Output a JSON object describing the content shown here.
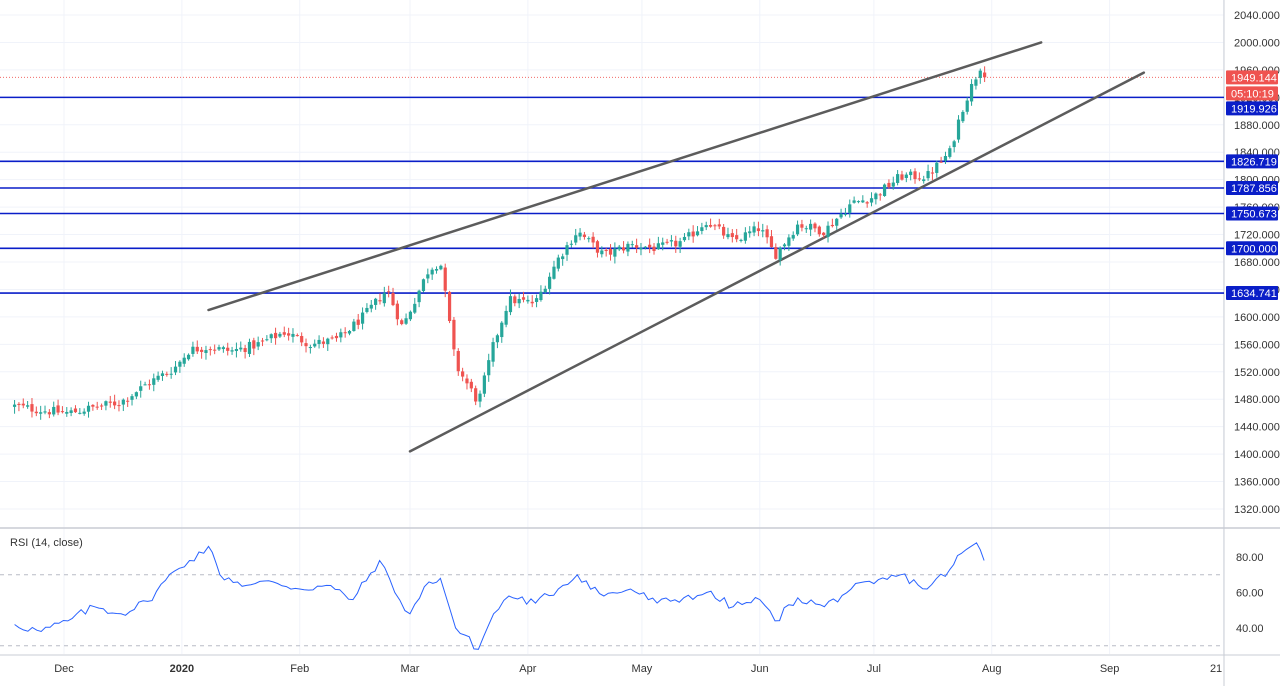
{
  "chart_data": [
    {
      "type": "candlestick",
      "title": "",
      "x_ticks": [
        "Dec",
        "2020",
        "Feb",
        "Mar",
        "Apr",
        "May",
        "Jun",
        "Jul",
        "Aug",
        "Sep",
        "21"
      ],
      "y_ticks": [
        "1320.000",
        "1360.000",
        "1400.000",
        "1440.000",
        "1480.000",
        "1520.000",
        "1560.000",
        "1600.000",
        "1640.000",
        "1680.000",
        "1720.000",
        "1760.000",
        "1800.000",
        "1840.000",
        "1880.000",
        "1920.000",
        "1960.000",
        "2000.000",
        "2040.000"
      ],
      "ylim": [
        1300,
        2055
      ],
      "last_price": {
        "value": 1949.144,
        "label": "1949.144",
        "color": "#ef5350"
      },
      "countdown": {
        "label": "05:10:19",
        "color": "#ef5350"
      },
      "horizontal_levels": [
        {
          "value": 1919.926,
          "label": "1919.926",
          "color": "#0a1ec8"
        },
        {
          "value": 1826.719,
          "label": "1826.719",
          "color": "#0a1ec8"
        },
        {
          "value": 1787.856,
          "label": "1787.856",
          "color": "#0a1ec8"
        },
        {
          "value": 1750.673,
          "label": "1750.673",
          "color": "#0a1ec8"
        },
        {
          "value": 1700.0,
          "label": "1700.000",
          "color": "#0a1ec8"
        },
        {
          "value": 1634.741,
          "label": "1634.741",
          "color": "#0a1ec8"
        }
      ],
      "trendlines": [
        {
          "from": {
            "date": "2020-01-08",
            "value": 1610
          },
          "to": {
            "date": "2020-08-14",
            "value": 2000
          },
          "color": "#5c5c5c"
        },
        {
          "from": {
            "date": "2020-03-01",
            "value": 1404
          },
          "to": {
            "date": "2020-09-10",
            "value": 1956
          },
          "color": "#5c5c5c"
        }
      ],
      "colors": {
        "up": "#26a69a",
        "down": "#ef5350"
      },
      "close_path": [
        [
          "2019-11-18",
          1470
        ],
        [
          "2019-11-25",
          1464
        ],
        [
          "2019-12-02",
          1460
        ],
        [
          "2019-12-09",
          1468
        ],
        [
          "2019-12-16",
          1476
        ],
        [
          "2019-12-23",
          1503
        ],
        [
          "2019-12-30",
          1525
        ],
        [
          "2020-01-03",
          1552
        ],
        [
          "2020-01-08",
          1556
        ],
        [
          "2020-01-14",
          1550
        ],
        [
          "2020-01-21",
          1560
        ],
        [
          "2020-01-28",
          1578
        ],
        [
          "2020-02-04",
          1560
        ],
        [
          "2020-02-11",
          1567
        ],
        [
          "2020-02-18",
          1602
        ],
        [
          "2020-02-24",
          1640
        ],
        [
          "2020-02-28",
          1585
        ],
        [
          "2020-03-06",
          1670
        ],
        [
          "2020-03-09",
          1680
        ],
        [
          "2020-03-13",
          1530
        ],
        [
          "2020-03-19",
          1475
        ],
        [
          "2020-03-23",
          1560
        ],
        [
          "2020-03-27",
          1625
        ],
        [
          "2020-04-03",
          1620
        ],
        [
          "2020-04-09",
          1685
        ],
        [
          "2020-04-14",
          1725
        ],
        [
          "2020-04-21",
          1690
        ],
        [
          "2020-04-28",
          1705
        ],
        [
          "2020-05-05",
          1700
        ],
        [
          "2020-05-12",
          1710
        ],
        [
          "2020-05-18",
          1740
        ],
        [
          "2020-05-25",
          1710
        ],
        [
          "2020-06-01",
          1730
        ],
        [
          "2020-06-05",
          1690
        ],
        [
          "2020-06-11",
          1735
        ],
        [
          "2020-06-18",
          1725
        ],
        [
          "2020-06-25",
          1765
        ],
        [
          "2020-07-01",
          1775
        ],
        [
          "2020-07-08",
          1805
        ],
        [
          "2020-07-15",
          1805
        ],
        [
          "2020-07-21",
          1840
        ],
        [
          "2020-07-24",
          1900
        ],
        [
          "2020-07-27",
          1940
        ],
        [
          "2020-07-29",
          1965
        ],
        [
          "2020-07-30",
          1949
        ]
      ]
    },
    {
      "type": "line",
      "title": "RSI (14, close)",
      "y_ticks": [
        "40.00",
        "60.00",
        "80.00"
      ],
      "ylim": [
        15,
        100
      ],
      "reference_lines": [
        30,
        70
      ],
      "series": [
        {
          "values": [
            [
              "2019-11-18",
              42
            ],
            [
              "2019-11-25",
              38
            ],
            [
              "2019-12-02",
              44
            ],
            [
              "2019-12-09",
              52
            ],
            [
              "2019-12-16",
              48
            ],
            [
              "2019-12-23",
              55
            ],
            [
              "2019-12-30",
              72
            ],
            [
              "2020-01-03",
              78
            ],
            [
              "2020-01-08",
              86
            ],
            [
              "2020-01-11",
              70
            ],
            [
              "2020-01-18",
              64
            ],
            [
              "2020-01-25",
              66
            ],
            [
              "2020-02-01",
              62
            ],
            [
              "2020-02-08",
              64
            ],
            [
              "2020-02-15",
              56
            ],
            [
              "2020-02-22",
              78
            ],
            [
              "2020-02-26",
              60
            ],
            [
              "2020-03-01",
              48
            ],
            [
              "2020-03-06",
              66
            ],
            [
              "2020-03-09",
              68
            ],
            [
              "2020-03-13",
              40
            ],
            [
              "2020-03-19",
              28
            ],
            [
              "2020-03-23",
              48
            ],
            [
              "2020-03-27",
              58
            ],
            [
              "2020-04-03",
              54
            ],
            [
              "2020-04-09",
              62
            ],
            [
              "2020-04-14",
              70
            ],
            [
              "2020-04-21",
              58
            ],
            [
              "2020-04-28",
              62
            ],
            [
              "2020-05-05",
              54
            ],
            [
              "2020-05-12",
              57
            ],
            [
              "2020-05-18",
              60
            ],
            [
              "2020-05-25",
              52
            ],
            [
              "2020-06-01",
              56
            ],
            [
              "2020-06-05",
              44
            ],
            [
              "2020-06-11",
              57
            ],
            [
              "2020-06-18",
              52
            ],
            [
              "2020-06-25",
              62
            ],
            [
              "2020-07-01",
              65
            ],
            [
              "2020-07-08",
              70
            ],
            [
              "2020-07-15",
              62
            ],
            [
              "2020-07-21",
              73
            ],
            [
              "2020-07-24",
              82
            ],
            [
              "2020-07-28",
              88
            ],
            [
              "2020-07-30",
              78
            ]
          ],
          "color": "#2962ff"
        }
      ]
    }
  ]
}
